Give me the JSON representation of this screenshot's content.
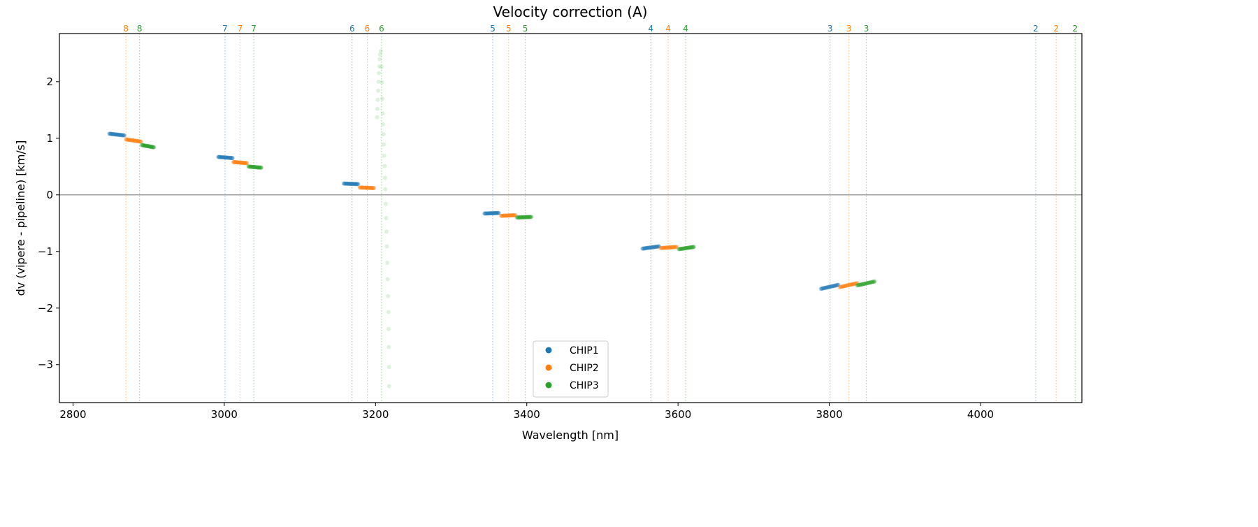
{
  "chart_data": {
    "type": "scatter",
    "title": "Velocity correction (A)",
    "xlabel": "Wavelength [nm]",
    "ylabel": "dv (vipere - pipeline) [km/s]",
    "xlim": [
      2782,
      4134
    ],
    "ylim": [
      -3.67,
      2.85
    ],
    "xticks": [
      2800,
      3000,
      3200,
      3400,
      3600,
      3800,
      4000
    ],
    "yticks": [
      -3,
      -2,
      -1,
      0,
      1,
      2
    ],
    "grid": false,
    "zero_line": true,
    "legend_placement": "lower-center",
    "colors": {
      "CHIP1": "#1f77b4",
      "CHIP2": "#ff7f0e",
      "CHIP3": "#2ca02c",
      "zero_line": "#808080"
    },
    "series": [
      {
        "name": "CHIP1",
        "segments": [
          {
            "x": [
              2848,
              2868
            ],
            "y": [
              1.08,
              1.05
            ]
          },
          {
            "x": [
              2992,
              3011
            ],
            "y": [
              0.67,
              0.65
            ]
          },
          {
            "x": [
              3158,
              3177
            ],
            "y": [
              0.2,
              0.19
            ]
          },
          {
            "x": [
              3344,
              3363
            ],
            "y": [
              -0.33,
              -0.32
            ]
          },
          {
            "x": [
              3553,
              3575
            ],
            "y": [
              -0.95,
              -0.91
            ]
          },
          {
            "x": [
              3789,
              3812
            ],
            "y": [
              -1.66,
              -1.59
            ]
          }
        ]
      },
      {
        "name": "CHIP2",
        "segments": [
          {
            "x": [
              2870,
              2890
            ],
            "y": [
              0.98,
              0.94
            ]
          },
          {
            "x": [
              3012,
              3030
            ],
            "y": [
              0.58,
              0.56
            ]
          },
          {
            "x": [
              3179,
              3198
            ],
            "y": [
              0.13,
              0.12
            ]
          },
          {
            "x": [
              3366,
              3385
            ],
            "y": [
              -0.37,
              -0.36
            ]
          },
          {
            "x": [
              3577,
              3598
            ],
            "y": [
              -0.94,
              -0.92
            ]
          },
          {
            "x": [
              3814,
              3837
            ],
            "y": [
              -1.63,
              -1.56
            ]
          }
        ]
      },
      {
        "name": "CHIP3",
        "segments": [
          {
            "x": [
              2891,
              2907
            ],
            "y": [
              0.88,
              0.84
            ]
          },
          {
            "x": [
              3032,
              3049
            ],
            "y": [
              0.5,
              0.48
            ]
          },
          {
            "x": [
              3387,
              3406
            ],
            "y": [
              -0.4,
              -0.39
            ]
          },
          {
            "x": [
              3601,
              3621
            ],
            "y": [
              -0.96,
              -0.92
            ]
          },
          {
            "x": [
              3837,
              3860
            ],
            "y": [
              -1.6,
              -1.53
            ]
          }
        ],
        "outliers": [
          [
            3202,
            1.37
          ],
          [
            3202.5,
            1.52
          ],
          [
            3203,
            1.68
          ],
          [
            3203.5,
            1.84
          ],
          [
            3204,
            2.0
          ],
          [
            3204.5,
            2.15
          ],
          [
            3205,
            2.27
          ],
          [
            3205.5,
            2.4
          ],
          [
            3206,
            2.48
          ],
          [
            3207,
            2.54
          ],
          [
            3208,
            2.26
          ],
          [
            3208.5,
            1.99
          ],
          [
            3209,
            1.7
          ],
          [
            3209.5,
            1.44
          ],
          [
            3210,
            1.25
          ],
          [
            3210.5,
            1.07
          ],
          [
            3211,
            0.89
          ],
          [
            3211.5,
            0.69
          ],
          [
            3212,
            0.51
          ],
          [
            3212.5,
            0.3
          ],
          [
            3213,
            0.1
          ],
          [
            3213.5,
            -0.16
          ],
          [
            3214,
            -0.41
          ],
          [
            3214.5,
            -0.65
          ],
          [
            3215,
            -0.91
          ],
          [
            3215.5,
            -1.2
          ],
          [
            3216,
            -1.49
          ],
          [
            3216.5,
            -1.79
          ],
          [
            3217,
            -2.07
          ],
          [
            3217.3,
            -2.37
          ],
          [
            3217.6,
            -2.69
          ],
          [
            3217.8,
            -3.04
          ],
          [
            3218,
            -3.38
          ]
        ]
      }
    ],
    "order_markers": [
      {
        "chip": "CHIP2",
        "order": "8",
        "x": 2870
      },
      {
        "chip": "CHIP3",
        "order": "8",
        "x": 2888
      },
      {
        "chip": "CHIP1",
        "order": "7",
        "x": 3001
      },
      {
        "chip": "CHIP2",
        "order": "7",
        "x": 3021
      },
      {
        "chip": "CHIP3",
        "order": "7",
        "x": 3039
      },
      {
        "chip": "CHIP1",
        "order": "6",
        "x": 3169
      },
      {
        "chip": "CHIP2",
        "order": "6",
        "x": 3189
      },
      {
        "chip": "CHIP3",
        "order": "6",
        "x": 3208
      },
      {
        "chip": "CHIP1",
        "order": "5",
        "x": 3355
      },
      {
        "chip": "CHIP2",
        "order": "5",
        "x": 3376
      },
      {
        "chip": "CHIP3",
        "order": "5",
        "x": 3398
      },
      {
        "chip": "CHIP1",
        "order": "4",
        "x": 3564
      },
      {
        "chip": "CHIP2",
        "order": "4",
        "x": 3587
      },
      {
        "chip": "CHIP3",
        "order": "4",
        "x": 3610
      },
      {
        "chip": "CHIP1",
        "order": "3",
        "x": 3801
      },
      {
        "chip": "CHIP2",
        "order": "3",
        "x": 3826
      },
      {
        "chip": "CHIP3",
        "order": "3",
        "x": 3849
      },
      {
        "chip": "CHIP1",
        "order": "2",
        "x": 4073
      },
      {
        "chip": "CHIP2",
        "order": "2",
        "x": 4100
      },
      {
        "chip": "CHIP3",
        "order": "2",
        "x": 4125
      }
    ],
    "legend": [
      "CHIP1",
      "CHIP2",
      "CHIP3"
    ]
  }
}
